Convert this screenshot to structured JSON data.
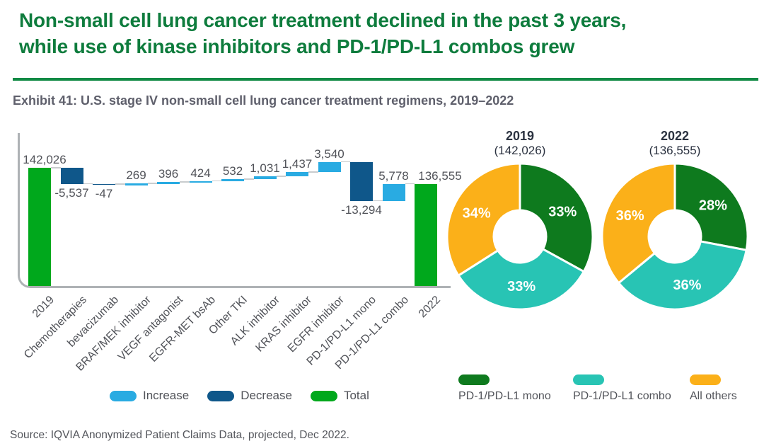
{
  "header": {
    "title_lines": [
      "Non-small cell lung cancer treatment declined in the past 3 years,",
      "while use of kinase inhibitors and PD-1/PD-L1 combos grew"
    ],
    "exhibit": "Exhibit 41: U.S. stage IV non-small cell lung cancer treatment regimens, 2019–2022"
  },
  "colors": {
    "title_green": "#0E7C3D",
    "divider_green": "#118A45",
    "exhibit_gray": "#5F606C",
    "label_gray": "#515359",
    "axis_gray": "#AEB2B5",
    "connector_gray": "#C9CCCE",
    "increase": "#29ABE2",
    "decrease": "#0F578A",
    "total": "#00A81C",
    "mono_green": "#0E7A1E",
    "combo_teal": "#28C4B4",
    "others_amber": "#FBB019",
    "donut_header": "#2B3240",
    "pct_white": "#FFFFFF",
    "source_gray": "#53555B"
  },
  "chart_data": [
    {
      "type": "waterfall",
      "title": "U.S. stage IV non-small cell lung cancer treatment regimens, change 2019 to 2022 (patient counts)",
      "categories": [
        "2019",
        "Chemotherapies",
        "bevacizumab",
        "BRAF/MEK inhibitor",
        "VEGF antagonist",
        "EGFR-MET bsAb",
        "Other TKI",
        "ALK inhibitor",
        "KRAS inhibitor",
        "EGFR inhibitor",
        "PD-1/PD-L1 mono",
        "PD-1/PD-L1 combo",
        "2022"
      ],
      "values": [
        142026,
        -5537,
        -47,
        269,
        396,
        424,
        532,
        1031,
        1437,
        3540,
        -13294,
        5778,
        136555
      ],
      "labels": [
        "142,026",
        "-5,537",
        "-47",
        "269",
        "396",
        "424",
        "532",
        "1,031",
        "1,437",
        "3,540",
        "-13,294",
        "5,778",
        "136,555"
      ],
      "roles": [
        "total",
        "decrease",
        "decrease",
        "increase",
        "increase",
        "increase",
        "increase",
        "increase",
        "increase",
        "increase",
        "decrease",
        "increase",
        "total"
      ],
      "legend": [
        {
          "label": "Increase",
          "color_key": "increase"
        },
        {
          "label": "Decrease",
          "color_key": "decrease"
        },
        {
          "label": "Total",
          "color_key": "total"
        }
      ],
      "legend_position": "bottom",
      "grid": false
    },
    {
      "type": "donut",
      "title": "2019",
      "subtitle": "(142,026)",
      "total": 142026,
      "slices": [
        {
          "label": "PD-1/PD-L1 mono",
          "value": 33,
          "display": "33%",
          "color_key": "mono_green"
        },
        {
          "label": "PD-1/PD-L1 combo",
          "value": 33,
          "display": "33%",
          "color_key": "combo_teal"
        },
        {
          "label": "All others",
          "value": 34,
          "display": "34%",
          "color_key": "others_amber"
        }
      ]
    },
    {
      "type": "donut",
      "title": "2022",
      "subtitle": "(136,555)",
      "total": 136555,
      "slices": [
        {
          "label": "PD-1/PD-L1 mono",
          "value": 28,
          "display": "28%",
          "color_key": "mono_green"
        },
        {
          "label": "PD-1/PD-L1 combo",
          "value": 36,
          "display": "36%",
          "color_key": "combo_teal"
        },
        {
          "label": "All others",
          "value": 36,
          "display": "36%",
          "color_key": "others_amber"
        }
      ]
    }
  ],
  "donut_legend": [
    {
      "label": "PD-1/PD-L1 mono",
      "color_key": "mono_green"
    },
    {
      "label": "PD-1/PD-L1 combo",
      "color_key": "combo_teal"
    },
    {
      "label": "All others",
      "color_key": "others_amber"
    }
  ],
  "source": "Source: IQVIA Anonymized Patient Claims Data, projected, Dec 2022."
}
